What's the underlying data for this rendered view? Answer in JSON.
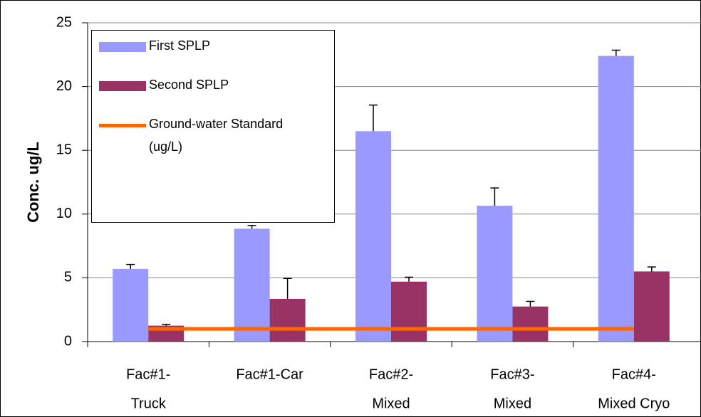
{
  "chart_data": {
    "type": "bar",
    "y_label": "Conc. ug/L",
    "categories": [
      [
        "Fac#1-",
        "Truck"
      ],
      [
        "Fac#1-Car"
      ],
      [
        "Fac#2-",
        "Mixed"
      ],
      [
        "Fac#3-",
        "Mixed"
      ],
      [
        "Fac#4-",
        "Mixed Cryo"
      ]
    ],
    "series": [
      {
        "name": "First SPLP",
        "color": "#9999ff",
        "values": [
          5.7,
          8.85,
          16.5,
          10.65,
          22.4
        ],
        "errors": [
          0.35,
          0.25,
          2.05,
          1.4,
          0.45
        ]
      },
      {
        "name": "Second SPLP",
        "color": "#993366",
        "values": [
          1.25,
          3.35,
          4.7,
          2.75,
          5.5
        ],
        "errors": [
          0.1,
          1.6,
          0.35,
          0.4,
          0.35
        ]
      },
      {
        "name": "Ground-water Standard (ug/L)",
        "color": "#ff6600",
        "type": "line",
        "values": [
          1,
          1,
          1,
          1,
          1
        ]
      }
    ],
    "ylim": [
      0,
      25
    ],
    "yticks": [
      0,
      5,
      10,
      15,
      20,
      25
    ],
    "grid": true,
    "legend": "upper left"
  }
}
